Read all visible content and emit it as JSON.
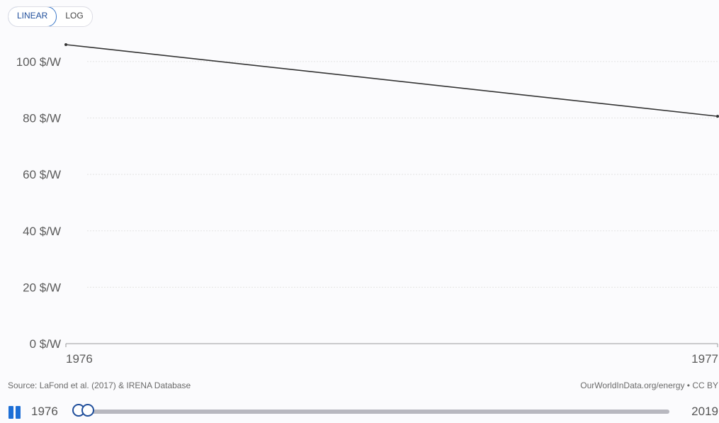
{
  "scale_toggle": {
    "linear_label": "LINEAR",
    "log_label": "LOG",
    "selected": "LINEAR"
  },
  "chart_data": {
    "type": "line",
    "x": [
      1976,
      1977
    ],
    "series": [
      {
        "values": [
          106.0,
          80.6
        ],
        "color": "#333333"
      }
    ],
    "ylim": [
      0,
      106
    ],
    "y_ticks": [
      0,
      20,
      40,
      60,
      80,
      100
    ],
    "y_tick_labels": [
      "0 $/W",
      "20 $/W",
      "40 $/W",
      "60 $/W",
      "80 $/W",
      "100 $/W"
    ],
    "x_tick_labels": [
      "1976",
      "1977"
    ],
    "grid": true
  },
  "footer": {
    "source": "Source: LaFond et al. (2017) & IRENA Database",
    "credit": "OurWorldInData.org/energy • CC BY"
  },
  "timeline": {
    "start_year": "1976",
    "end_year": "2019",
    "icon": "pause-icon"
  },
  "colors": {
    "accent": "#1d6fd6",
    "line": "#333333",
    "grid": "#e3e3e3"
  }
}
